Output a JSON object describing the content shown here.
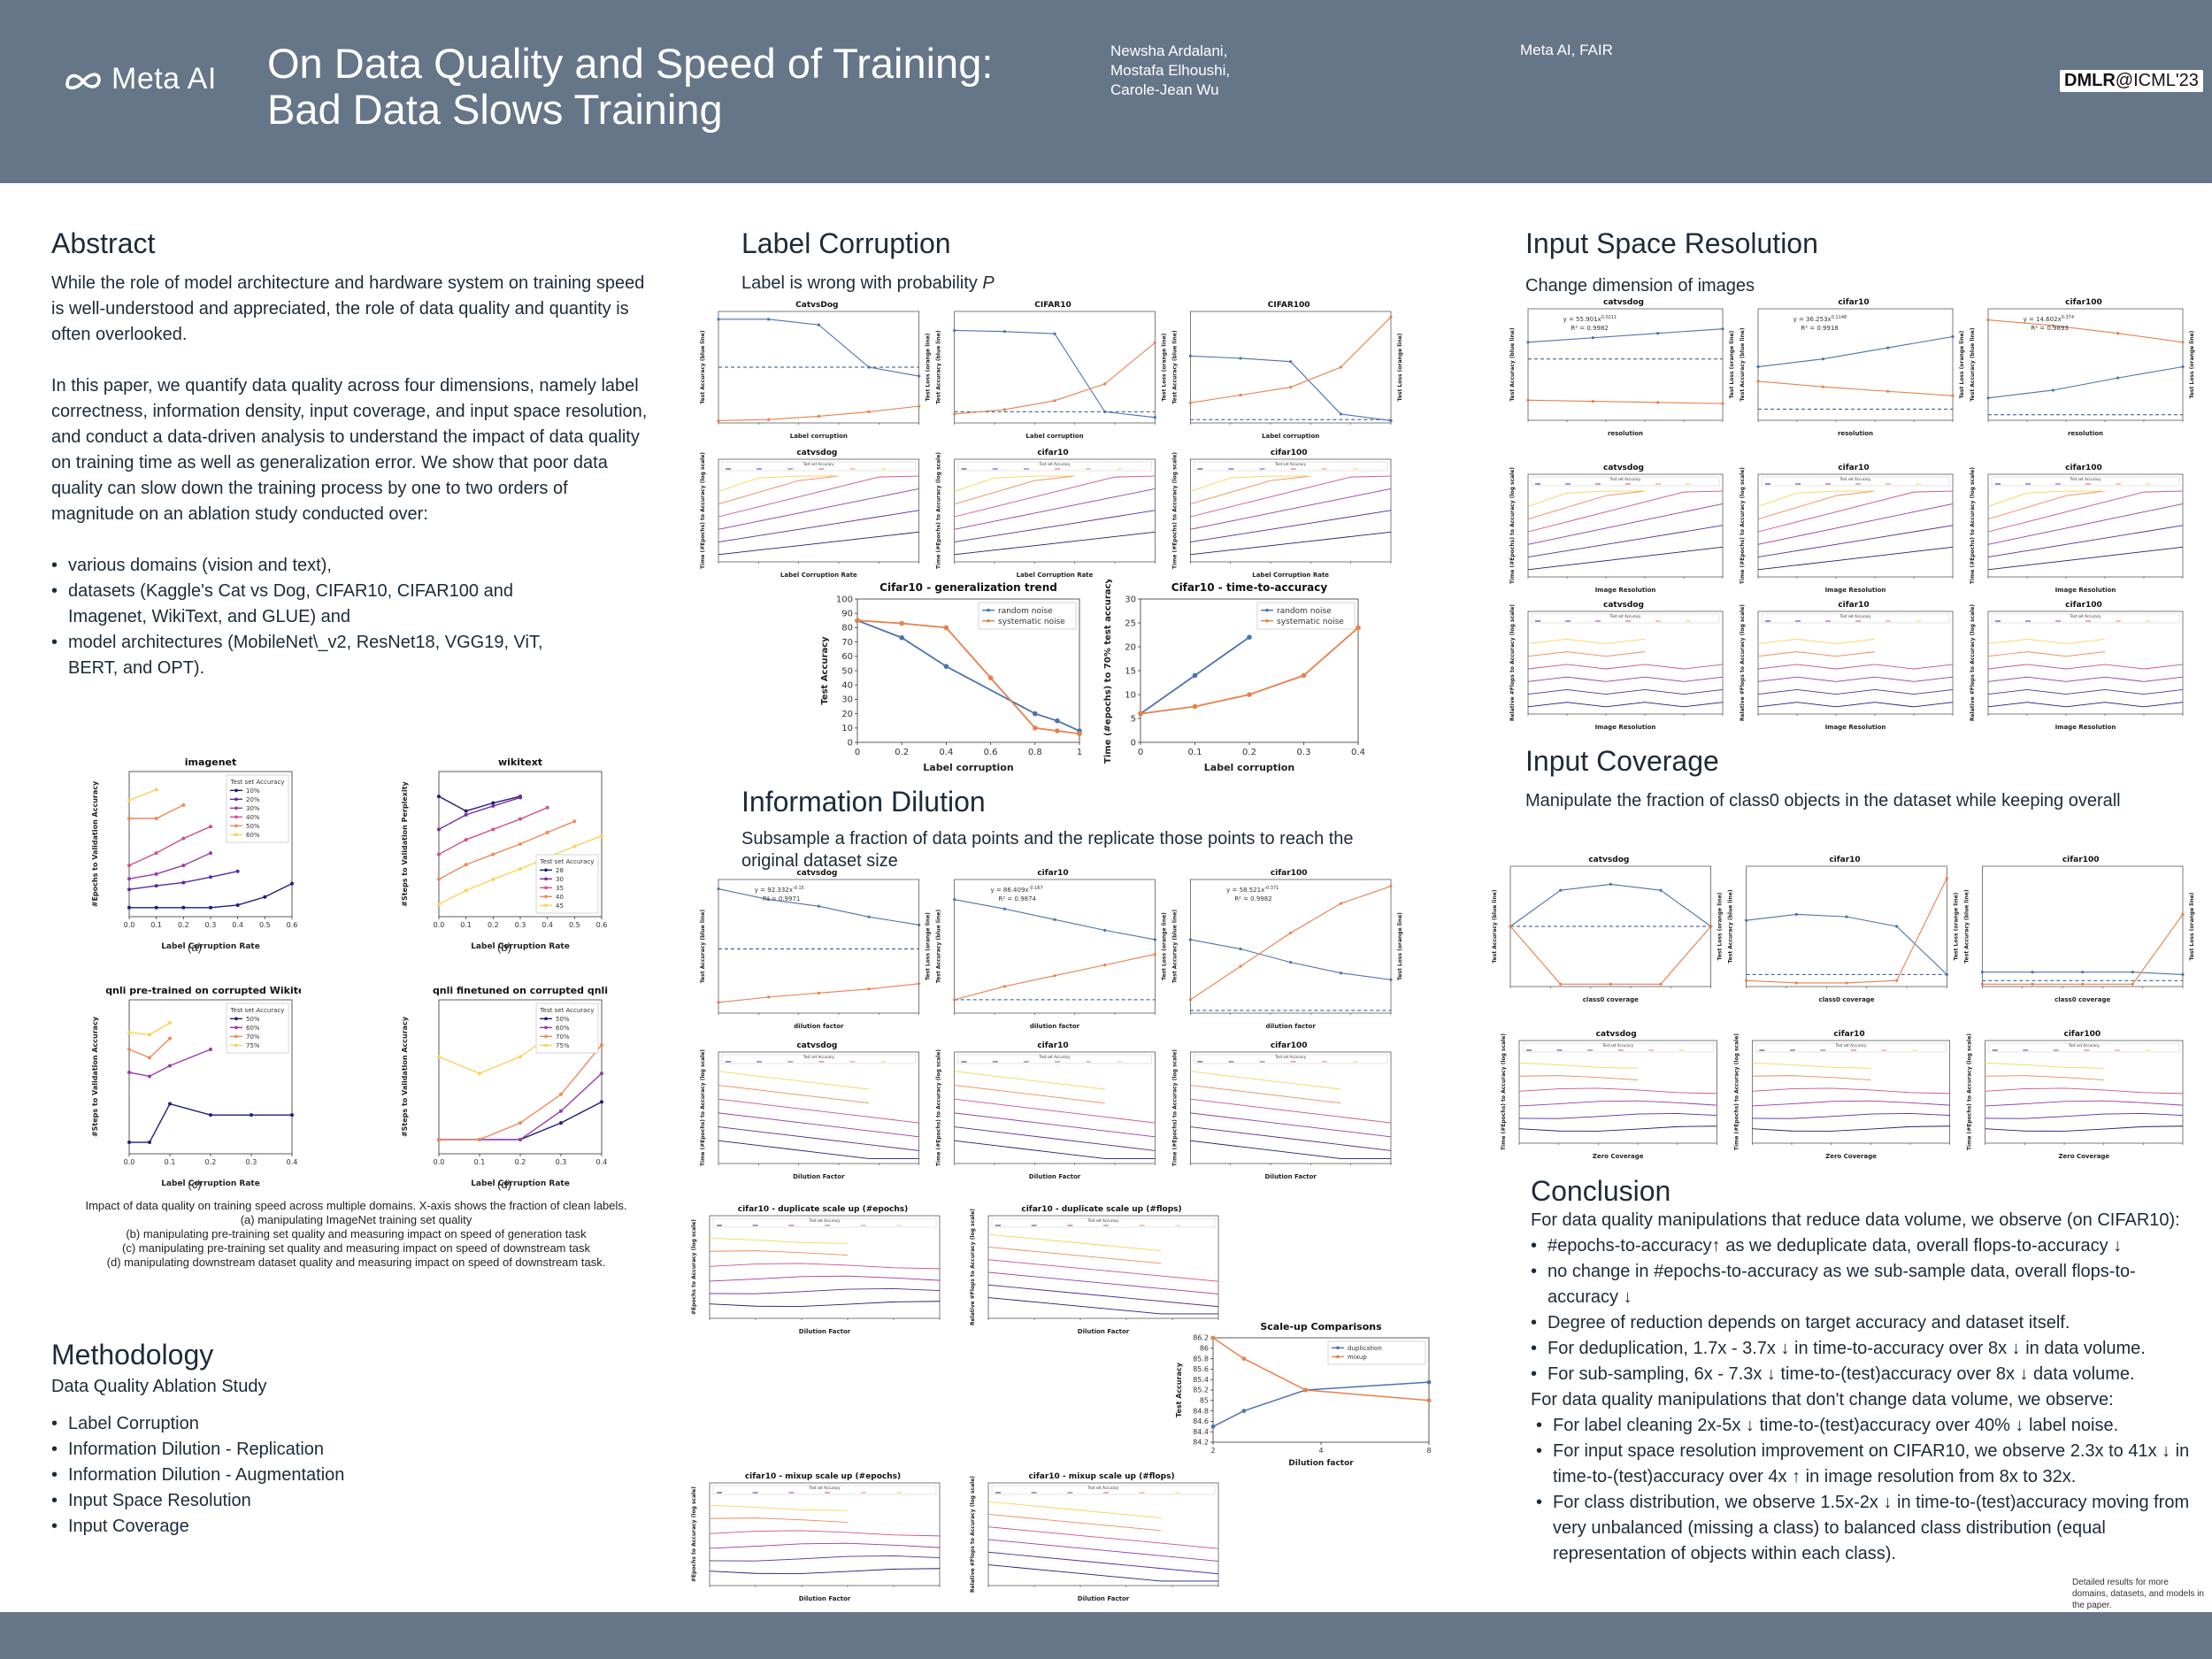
{
  "header": {
    "logo_text": "Meta AI",
    "title_line1": "On Data Quality and Speed of Training:",
    "title_line2": "Bad Data Slows Training",
    "authors": [
      "Newsha Ardalani,",
      "Mostafa Elhoushi,",
      "Carole-Jean Wu"
    ],
    "affiliation": "Meta AI, FAIR",
    "venue_bold": "DMLR",
    "venue_rest": "@ICML'23"
  },
  "abstract": {
    "heading": "Abstract",
    "p1": "While the role of model architecture and hardware system on training speed is well-understood and appreciated, the role of data quality and quantity is often overlooked.",
    "p2": "In this paper, we quantify data quality across four dimensions, namely label correctness, information density, input coverage, and input space resolution, and conduct a data-driven analysis to understand the impact of data quality on training time as well as generalization error. We show that poor data quality can slow down the training process by one to two orders of magnitude on an ablation study conducted over:",
    "bullets": [
      "various domains (vision and text),",
      "datasets (Kaggle's Cat vs Dog, CIFAR10, CIFAR100 and Imagenet, WikiText, and GLUE) and",
      "model architectures (MobileNet\\_v2, ResNet18, VGG19, ViT, BERT, and OPT)."
    ]
  },
  "left_figures": {
    "caption_lines": [
      "Impact of data quality on training speed across multiple domains. X-axis shows the fraction of clean labels.",
      "(a) manipulating ImageNet training set quality",
      "(b) manipulating pre-training set quality and measuring impact on speed of generation task",
      "(c) manipulating pre-training set quality and measuring impact on speed of downstream task",
      "(d) manipulating downstream dataset quality and measuring impact on speed of downstream task."
    ]
  },
  "methodology": {
    "heading": "Methodology",
    "subheading": "Data Quality Ablation Study",
    "bullets": [
      "Label Corruption",
      "Information Dilution - Replication",
      "Information Dilution - Augmentation",
      "Input Space Resolution",
      "Input Coverage"
    ]
  },
  "label_corruption": {
    "heading": "Label Corruption",
    "subheading_prefix": "Label is wrong with probability ",
    "subheading_var": "P"
  },
  "information_dilution": {
    "heading": "Information Dilution",
    "subheading": "Subsample a fraction of data points and the replicate those points to reach the original dataset size"
  },
  "input_space_resolution": {
    "heading": "Input Space Resolution",
    "subheading": "Change dimension of images"
  },
  "input_coverage": {
    "heading": "Input Coverage",
    "subheading": "Manipulate the fraction of class0 objects in the dataset while keeping overall"
  },
  "conclusion": {
    "heading": "Conclusion",
    "intro1": "For data quality manipulations that reduce data volume, we observe (on CIFAR10):",
    "bullets1": [
      "#epochs-to-accuracy↑ as we deduplicate data, overall flops-to-accuracy ↓",
      "no change in #epochs-to-accuracy as we sub-sample data, overall flops-to-accuracy ↓",
      "Degree of reduction depends on target accuracy and dataset itself.",
      "For deduplication, 1.7x - 3.7x ↓ in time-to-accuracy over 8x ↓ in data volume.",
      "For sub-sampling, 6x - 7.3x ↓ time-to-(test)accuracy over 8x ↓ data volume."
    ],
    "intro2": "For data quality manipulations that don't change data volume, we observe:",
    "bullets2": [
      "For label cleaning 2x-5x ↓ time-to-(test)accuracy over 40% ↓ label noise.",
      "For input space resolution improvement on CIFAR10, we observe 2.3x to 41x ↓ in time-to-(test)accuracy over 4x ↑ in image resolution from 8x to 32x.",
      "For class distribution, we observe 1.5x-2x ↓ in time-to-(test)accuracy moving from very unbalanced (missing a class) to balanced class distribution (equal representation of objects within each class)."
    ],
    "note": "Detailed results for more domains, datasets, and models in the paper."
  },
  "chart_data": [
    {
      "id": "imagenet",
      "type": "line",
      "title": "imagenet",
      "xlabel": "Label Corruption Rate",
      "ylabel": "#Epochs to Validation Accuracy",
      "yscale": "log",
      "ticks_x": [
        "0.0",
        "0.1",
        "0.2",
        "0.3",
        "0.4",
        "0.5",
        "0.6"
      ],
      "legend_title": "Test set Accuracy",
      "legend_position": "top-right",
      "panel_label": "(a)",
      "x": [
        0.0,
        0.1,
        0.2,
        0.3,
        0.4,
        0.5,
        0.6
      ],
      "series": [
        {
          "name": "10%",
          "values": [
            1,
            1,
            1,
            1,
            1.1,
            1.5,
            2.5
          ]
        },
        {
          "name": "20%",
          "values": [
            2,
            2.3,
            2.6,
            3.2,
            4,
            null,
            null
          ]
        },
        {
          "name": "30%",
          "values": [
            3,
            3.6,
            5,
            8,
            null,
            null,
            null
          ]
        },
        {
          "name": "40%",
          "values": [
            5,
            8,
            14,
            22,
            null,
            null,
            null
          ]
        },
        {
          "name": "50%",
          "values": [
            30,
            30,
            50,
            null,
            null,
            null,
            null
          ]
        },
        {
          "name": "60%",
          "values": [
            60,
            90,
            null,
            null,
            null,
            null,
            null
          ]
        }
      ]
    },
    {
      "id": "wikitext",
      "type": "line",
      "title": "wikitext",
      "xlabel": "Label Corruption Rate",
      "ylabel": "#Steps to Validation Perplexity",
      "yscale": "log",
      "ticks_x": [
        "0.0",
        "0.1",
        "0.2",
        "0.3",
        "0.4",
        "0.5",
        "0.6"
      ],
      "legend_title": "Test set Accuracy",
      "legend_position": "bottom-right",
      "panel_label": "(b)",
      "x": [
        0.0,
        0.1,
        0.2,
        0.3,
        0.4,
        0.5,
        0.6
      ],
      "series": [
        {
          "name": "28",
          "values": [
            300,
            200,
            250,
            300,
            null,
            null,
            null
          ]
        },
        {
          "name": "30",
          "values": [
            120,
            180,
            230,
            290,
            null,
            null,
            null
          ]
        },
        {
          "name": "35",
          "values": [
            60,
            90,
            120,
            160,
            220,
            null,
            null
          ]
        },
        {
          "name": "40",
          "values": [
            30,
            45,
            60,
            80,
            110,
            150,
            null
          ]
        },
        {
          "name": "45",
          "values": [
            15,
            22,
            30,
            40,
            55,
            75,
            100
          ]
        }
      ]
    },
    {
      "id": "qnli-pretrained",
      "type": "line",
      "title": "qnli pre-trained on corrupted Wikitext",
      "xlabel": "Label Corruption Rate",
      "ylabel": "#Steps to Validation Accuracy",
      "yscale": "log",
      "ticks_x": [
        "0.0",
        "0.1",
        "0.2",
        "0.3",
        "0.4"
      ],
      "legend_title": "Test set Accuracy",
      "legend_position": "top-right",
      "panel_label": "(c)",
      "x": [
        0.0,
        0.05,
        0.1,
        0.2,
        0.3,
        0.4
      ],
      "series": [
        {
          "name": "50%",
          "values": [
            110,
            110,
            350,
            250,
            250,
            250
          ]
        },
        {
          "name": "60%",
          "values": [
            900,
            800,
            1100,
            1800,
            null,
            null
          ]
        },
        {
          "name": "70%",
          "values": [
            1800,
            1400,
            2500,
            null,
            null,
            null
          ]
        },
        {
          "name": "75%",
          "values": [
            3000,
            2800,
            4000,
            null,
            null,
            null
          ]
        }
      ]
    },
    {
      "id": "qnli-finetuned",
      "type": "line",
      "title": "qnli finetuned on corrupted qnli",
      "xlabel": "Label Corruption Rate",
      "ylabel": "#Steps to Validation Accuracy",
      "yscale": "log",
      "ticks_x": [
        "0.0",
        "0.1",
        "0.2",
        "0.3",
        "0.4"
      ],
      "legend_title": "Test set Accuracy",
      "legend_position": "top-right",
      "panel_label": "(d)",
      "x": [
        0.0,
        0.1,
        0.2,
        0.3,
        0.4
      ],
      "series": [
        {
          "name": "50%",
          "values": [
            20,
            20,
            20,
            30,
            50
          ]
        },
        {
          "name": "60%",
          "values": [
            20,
            20,
            20,
            40,
            100
          ]
        },
        {
          "name": "70%",
          "values": [
            20,
            20,
            30,
            60,
            200
          ]
        },
        {
          "name": "75%",
          "values": [
            150,
            100,
            150,
            300,
            null
          ]
        }
      ]
    },
    {
      "id": "lc-generalization",
      "type": "line",
      "title": "Cifar10 - generalization trend",
      "xlabel": "Label corruption",
      "ylabel": "Test Accuracy",
      "ylim": [
        0,
        100
      ],
      "xlim": [
        0,
        1
      ],
      "ticks_x": [
        "0",
        "0.2",
        "0.4",
        "0.6",
        "0.8",
        "1"
      ],
      "ticks_y": [
        "0",
        "10",
        "20",
        "30",
        "40",
        "50",
        "60",
        "70",
        "80",
        "90",
        "100"
      ],
      "legend_position": "top-right",
      "series": [
        {
          "name": "random noise",
          "x": [
            0,
            0.2,
            0.4,
            0.8,
            0.9,
            1.0
          ],
          "values": [
            85,
            73,
            53,
            20,
            15,
            8
          ]
        },
        {
          "name": "systematic noise",
          "x": [
            0,
            0.2,
            0.4,
            0.6,
            0.8,
            0.9,
            1.0
          ],
          "values": [
            85,
            83,
            80,
            45,
            10,
            8,
            6
          ]
        }
      ]
    },
    {
      "id": "lc-time-to-accuracy",
      "type": "line",
      "title": "Cifar10 - time-to-accuracy",
      "xlabel": "Label corruption",
      "ylabel": "Time (#epochs) to 70% test accuracy",
      "ylim": [
        0,
        30
      ],
      "xlim": [
        0,
        0.4
      ],
      "ticks_x": [
        "0",
        "0.1",
        "0.2",
        "0.3",
        "0.4"
      ],
      "ticks_y": [
        "0",
        "5",
        "10",
        "15",
        "20",
        "25",
        "30"
      ],
      "legend_position": "top-right",
      "series": [
        {
          "name": "random noise",
          "x": [
            0,
            0.1,
            0.2
          ],
          "values": [
            6,
            14,
            22
          ]
        },
        {
          "name": "systematic noise",
          "x": [
            0,
            0.1,
            0.2,
            0.3,
            0.4
          ],
          "values": [
            6,
            7.5,
            10,
            14,
            24
          ]
        }
      ]
    },
    {
      "id": "scaleup-comparisons",
      "type": "line",
      "title": "Scale-up Comparisons",
      "xlabel": "Dilution factor",
      "ylabel": "Test Accuracy",
      "ylim": [
        84.2,
        86.2
      ],
      "ticks_x": [
        "2",
        "4",
        "8"
      ],
      "ticks_y": [
        "84.2",
        "84.4",
        "84.6",
        "84.8",
        "85",
        "85.2",
        "85.4",
        "85.6",
        "85.8",
        "86",
        "86.2"
      ],
      "legend_position": "top-right",
      "x": [
        1,
        2,
        4,
        8
      ],
      "series": [
        {
          "name": "duplication",
          "values": [
            84.5,
            84.8,
            85.2,
            85.35
          ]
        },
        {
          "name": "mixup",
          "values": [
            86.2,
            85.8,
            85.2,
            85.0
          ]
        }
      ]
    }
  ],
  "mini_chart_titles": {
    "lc_row1": [
      "CatvsDog",
      "CIFAR10",
      "CIFAR100"
    ],
    "lc_row2": [
      "catvsdog",
      "cifar10",
      "cifar100"
    ],
    "lc_row1_xlabel": "Label corruption",
    "lc_row2_xlabel": "Label Corruption Rate",
    "id_row1": [
      "catvsdog",
      "cifar10",
      "cifar100"
    ],
    "id_row1_xlabel": "dilution factor",
    "id_row2": [
      "catvsdog",
      "cifar10",
      "cifar100"
    ],
    "id_row2_xlabel": "Dilution Factor",
    "dup": [
      "cifar10 - duplicate scale up (#epochs)",
      "cifar10 - duplicate scale up (#flops)"
    ],
    "mixup": [
      "cifar10 - mixup scale up (#epochs)",
      "cifar10 - mixup scale up (#flops)"
    ],
    "isr_row1": [
      "catvsdog",
      "cifar10",
      "cifar100"
    ],
    "isr_row1_xlabel": "resolution",
    "isr_row2": [
      "catvsdog",
      "cifar10",
      "cifar100"
    ],
    "isr_row3": [
      "catvsdog",
      "cifar10",
      "cifar100"
    ],
    "isr_xlabel": "Image Resolution",
    "ic_row1": [
      "catvsdog",
      "cifar10",
      "cifar100"
    ],
    "ic_row1_xlabels": [
      "class0 coverage",
      "class0 coverage",
      "class0 coverage"
    ],
    "ic_row2": [
      "catvsdog",
      "cifar10",
      "cifar100"
    ],
    "ic_row2_xlabel": "Zero Coverage",
    "acc_label": "Test Accuracy (blue line)",
    "loss_label": "Test Loss (orange line)",
    "time_label": "Time (#Epochs) to Accuracy (log scale)",
    "rel_label": "Relative #Flops to Accuracy (log scale)",
    "epochs_label": "#Epochs to Accuracy (log scale)",
    "legend_title": "Test set Accuracy",
    "fits": {
      "id_catvsdog": [
        "y = 92.332x",
        "-0.15",
        "R² = 0.9971"
      ],
      "id_cifar10": [
        "y = 86.409x",
        "-0.167",
        "R² = 0.9874"
      ],
      "id_cifar100": [
        "y = 58.521x",
        "-0.371",
        "R² = 0.9982"
      ],
      "isr_catvsdog": [
        "y = 55.901x",
        "0.0211",
        "R² = 0.9982"
      ],
      "isr_cifar10": [
        "y = 36.253x",
        "0.1148",
        "R² = 0.9918"
      ],
      "isr_cifar100": [
        "y = 14.602x",
        "0.374",
        "R² = 0.9893"
      ]
    }
  }
}
